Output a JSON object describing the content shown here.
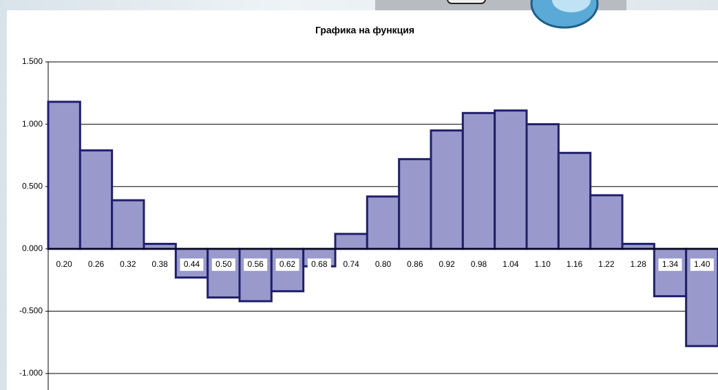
{
  "chart_data": {
    "type": "bar",
    "title": "Графика на функция",
    "categories": [
      "0.20",
      "0.26",
      "0.32",
      "0.38",
      "0.44",
      "0.50",
      "0.56",
      "0.62",
      "0.68",
      "0.74",
      "0.80",
      "0.86",
      "0.92",
      "0.98",
      "1.04",
      "1.10",
      "1.16",
      "1.22",
      "1.28",
      "1.34",
      "1.40"
    ],
    "values": [
      1.18,
      0.79,
      0.39,
      0.04,
      -0.23,
      -0.39,
      -0.42,
      -0.34,
      -0.14,
      0.12,
      0.42,
      0.72,
      0.95,
      1.09,
      1.11,
      1.0,
      0.77,
      0.43,
      0.04,
      -0.38,
      -0.78
    ],
    "color": "#9999cc",
    "edge_color": "#1f1f6b",
    "ylim": [
      -1,
      1.5
    ],
    "yticks": [
      {
        "value": -1,
        "label": "-1.000"
      },
      {
        "value": -0.5,
        "label": "-0.500"
      },
      {
        "value": 0,
        "label": "0.000"
      },
      {
        "value": 0.5,
        "label": "0.500"
      },
      {
        "value": 1,
        "label": "1.000"
      },
      {
        "value": 1.5,
        "label": "1.500"
      }
    ],
    "grid": true
  }
}
